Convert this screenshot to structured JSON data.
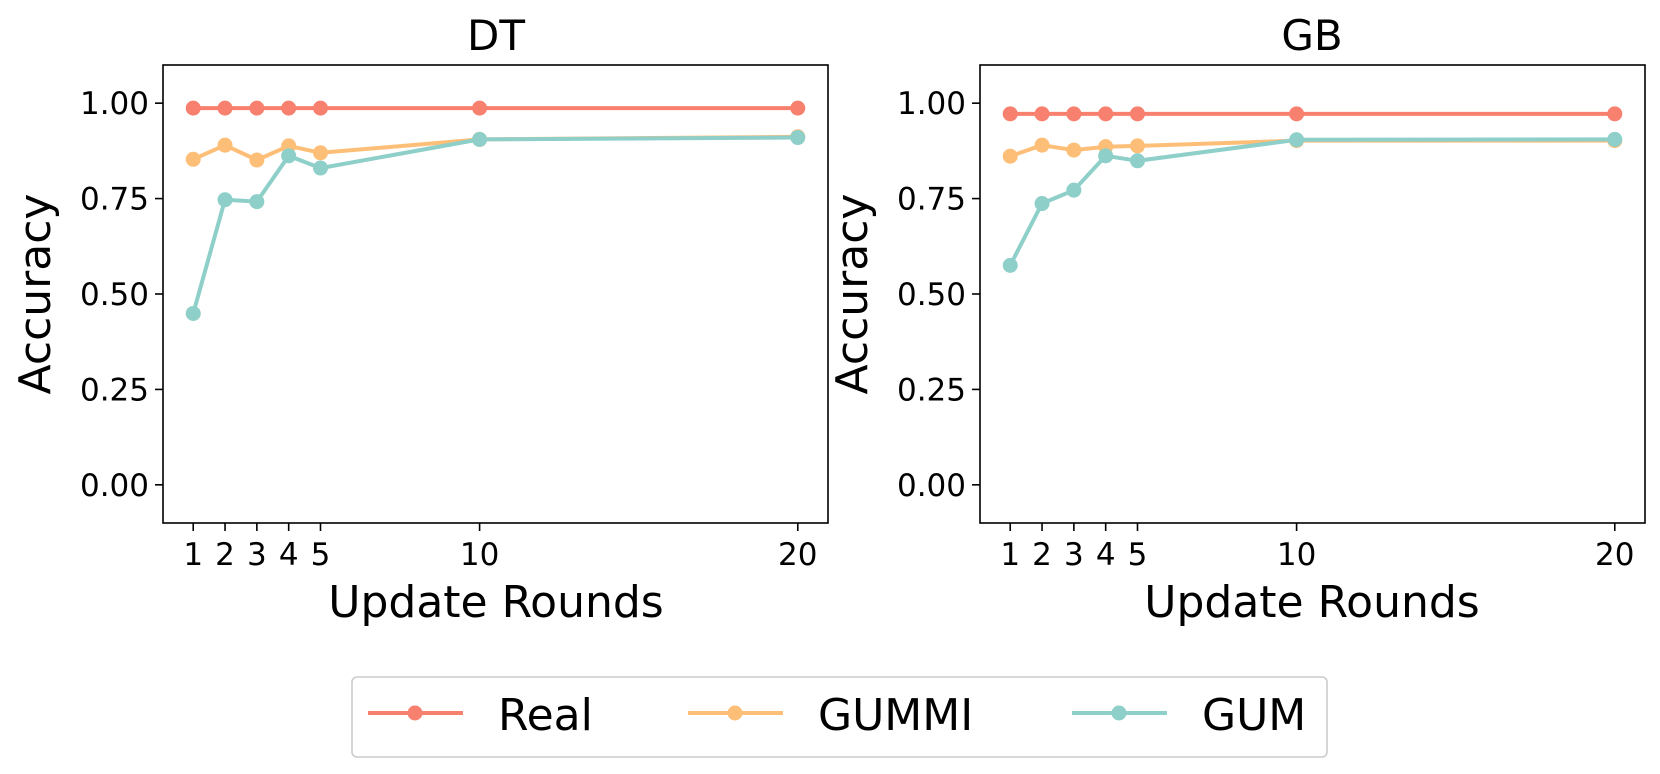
{
  "chart_data": [
    {
      "type": "line",
      "title": "DT",
      "xlabel": "Update Rounds",
      "ylabel": "Accuracy",
      "x": [
        1,
        2,
        3,
        4,
        5,
        10,
        20
      ],
      "xticks": [
        "1",
        "2",
        "3",
        "4",
        "5",
        "10",
        "20"
      ],
      "yticks": [
        "0.00",
        "0.25",
        "0.50",
        "0.75",
        "1.00"
      ],
      "ytick_values": [
        0,
        0.25,
        0.5,
        0.75,
        1.0
      ],
      "xlim": [
        0.05,
        20.95
      ],
      "ylim": [
        -0.1,
        1.1
      ],
      "grid": false,
      "series": [
        {
          "name": "Real",
          "values": [
            0.987,
            0.987,
            0.987,
            0.987,
            0.987,
            0.987,
            0.987
          ]
        },
        {
          "name": "GUMMI",
          "values": [
            0.853,
            0.89,
            0.851,
            0.888,
            0.87,
            0.905,
            0.912
          ]
        },
        {
          "name": "GUM",
          "values": [
            0.449,
            0.747,
            0.742,
            0.862,
            0.83,
            0.905,
            0.91
          ]
        }
      ]
    },
    {
      "type": "line",
      "title": "GB",
      "xlabel": "Update Rounds",
      "ylabel": "Accuracy",
      "x": [
        1,
        2,
        3,
        4,
        5,
        10,
        20
      ],
      "xticks": [
        "1",
        "2",
        "3",
        "4",
        "5",
        "10",
        "20"
      ],
      "yticks": [
        "0.00",
        "0.25",
        "0.50",
        "0.75",
        "1.00"
      ],
      "ytick_values": [
        0,
        0.25,
        0.5,
        0.75,
        1.0
      ],
      "xlim": [
        0.05,
        20.95
      ],
      "ylim": [
        -0.1,
        1.1
      ],
      "grid": false,
      "series": [
        {
          "name": "Real",
          "values": [
            0.972,
            0.972,
            0.972,
            0.972,
            0.972,
            0.972,
            0.972
          ]
        },
        {
          "name": "GUMMI",
          "values": [
            0.861,
            0.89,
            0.877,
            0.886,
            0.888,
            0.902,
            0.902
          ]
        },
        {
          "name": "GUM",
          "values": [
            0.575,
            0.737,
            0.772,
            0.862,
            0.849,
            0.904,
            0.905
          ]
        }
      ]
    }
  ],
  "legend": {
    "placement": "bottom-center",
    "entries": [
      {
        "label": "Real",
        "color": "#f8806f"
      },
      {
        "label": "GUMMI",
        "color": "#fdbf78"
      },
      {
        "label": "GUM",
        "color": "#8ecfc9"
      }
    ]
  },
  "colors": {
    "Real": "#f8806f",
    "GUMMI": "#fdbf78",
    "GUM": "#8ecfc9",
    "axis": "#000000",
    "legend_border": "#cccccc"
  }
}
